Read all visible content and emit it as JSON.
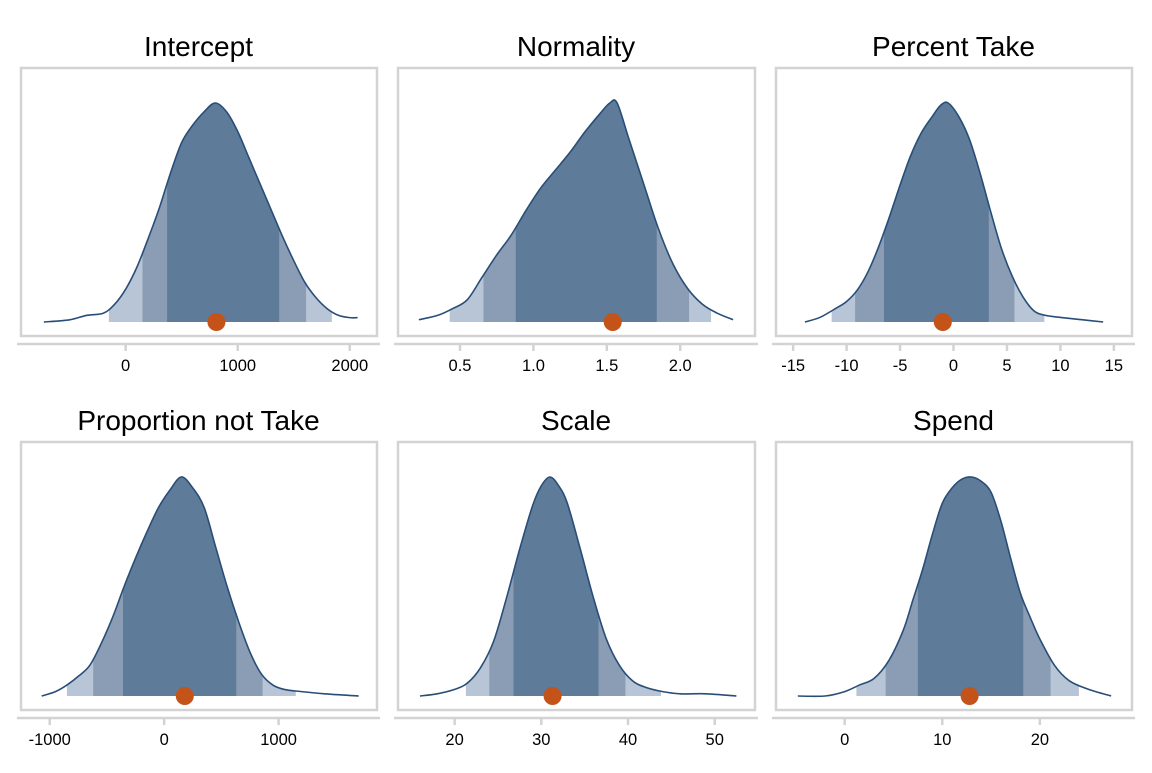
{
  "chart_data": {
    "type": "area",
    "description": "Posterior density plots with 50%/80%/95% interval shading and posterior median point",
    "colors": {
      "inner": "#5e7b99",
      "mid": "#8a9db5",
      "outer": "#b8c5d6",
      "line": "#284e78",
      "point": "#c4531a",
      "frame": "#d3d3d3"
    },
    "panels": [
      {
        "title": "Intercept",
        "xlim": [
          -800,
          2100
        ],
        "ticks": [
          0,
          1000,
          2000
        ],
        "tick_labels": [
          "0",
          "1000",
          "2000"
        ],
        "median": 810,
        "intervals": {
          "inner": [
            370,
            1370
          ],
          "mid": [
            150,
            1610
          ],
          "outer": [
            -150,
            1840
          ]
        },
        "density": {
          "x": [
            -730,
            -500,
            -350,
            -200,
            -100,
            0,
            100,
            200,
            300,
            400,
            500,
            600,
            700,
            800,
            900,
            1000,
            1100,
            1200,
            1300,
            1400,
            1500,
            1600,
            1700,
            1800,
            1900,
            2000,
            2070
          ],
          "y": [
            0.0,
            0.01,
            0.03,
            0.04,
            0.08,
            0.15,
            0.25,
            0.38,
            0.52,
            0.68,
            0.82,
            0.9,
            0.96,
            1.0,
            0.96,
            0.87,
            0.75,
            0.63,
            0.51,
            0.39,
            0.28,
            0.18,
            0.11,
            0.06,
            0.03,
            0.02,
            0.02
          ]
        }
      },
      {
        "title": "Normality",
        "xlim": [
          0.18,
          2.4
        ],
        "ticks": [
          0.5,
          1.0,
          1.5,
          2.0
        ],
        "tick_labels": [
          "0.5",
          "1.0",
          "1.5",
          "2.0"
        ],
        "median": 1.54,
        "intervals": {
          "inner": [
            0.88,
            1.84
          ],
          "mid": [
            0.66,
            2.06
          ],
          "outer": [
            0.43,
            2.21
          ]
        },
        "density": {
          "x": [
            0.22,
            0.35,
            0.45,
            0.55,
            0.65,
            0.75,
            0.85,
            0.95,
            1.05,
            1.15,
            1.25,
            1.35,
            1.45,
            1.52,
            1.57,
            1.65,
            1.75,
            1.85,
            1.95,
            2.05,
            2.15,
            2.25,
            2.36
          ],
          "y": [
            0.01,
            0.03,
            0.06,
            0.1,
            0.2,
            0.3,
            0.39,
            0.5,
            0.6,
            0.68,
            0.76,
            0.85,
            0.93,
            0.98,
            0.98,
            0.82,
            0.62,
            0.42,
            0.26,
            0.15,
            0.08,
            0.04,
            0.01
          ]
        }
      },
      {
        "title": "Percent Take",
        "xlim": [
          -15.2,
          15.2
        ],
        "ticks": [
          -15,
          -10,
          -5,
          0,
          5,
          10,
          15
        ],
        "tick_labels": [
          "-15",
          "-10",
          "-5",
          "0",
          "5",
          "10",
          "15"
        ],
        "median": -1.0,
        "intervals": {
          "inner": [
            -6.5,
            3.3
          ],
          "mid": [
            -9.2,
            5.7
          ],
          "outer": [
            -11.4,
            8.5
          ]
        },
        "density": {
          "x": [
            -13.9,
            -12.5,
            -11.0,
            -10.0,
            -9.0,
            -8.0,
            -7.0,
            -6.0,
            -5.0,
            -4.0,
            -3.0,
            -2.0,
            -1.2,
            -0.5,
            0.5,
            1.5,
            2.5,
            3.5,
            4.5,
            5.5,
            6.5,
            7.5,
            8.5,
            10.0,
            12.0,
            14.0
          ],
          "y": [
            0.0,
            0.02,
            0.06,
            0.09,
            0.14,
            0.22,
            0.33,
            0.46,
            0.6,
            0.73,
            0.83,
            0.9,
            0.95,
            0.96,
            0.9,
            0.8,
            0.65,
            0.48,
            0.32,
            0.2,
            0.11,
            0.05,
            0.03,
            0.02,
            0.01,
            0.0
          ]
        }
      },
      {
        "title": "Proportion not Take",
        "xlim": [
          -1120,
          1720
        ],
        "ticks": [
          -1000,
          0,
          1000
        ],
        "tick_labels": [
          "-1000",
          "0",
          "1000"
        ],
        "median": 180,
        "intervals": {
          "inner": [
            -360,
            630
          ],
          "mid": [
            -620,
            860
          ],
          "outer": [
            -850,
            1150
          ]
        },
        "density": {
          "x": [
            -1070,
            -950,
            -850,
            -750,
            -650,
            -550,
            -450,
            -350,
            -250,
            -150,
            -50,
            50,
            150,
            250,
            350,
            450,
            550,
            650,
            750,
            850,
            950,
            1050,
            1200,
            1400,
            1700
          ],
          "y": [
            0.0,
            0.02,
            0.05,
            0.09,
            0.14,
            0.24,
            0.36,
            0.5,
            0.63,
            0.75,
            0.86,
            0.94,
            1.0,
            0.95,
            0.86,
            0.68,
            0.5,
            0.34,
            0.2,
            0.1,
            0.05,
            0.03,
            0.02,
            0.01,
            0.0
          ]
        }
      },
      {
        "title": "Scale",
        "xlim": [
          15.2,
          52.8
        ],
        "ticks": [
          20,
          30,
          40,
          50
        ],
        "tick_labels": [
          "20",
          "30",
          "40",
          "50"
        ],
        "median": 31.3,
        "intervals": {
          "inner": [
            26.8,
            36.6
          ],
          "mid": [
            24.0,
            39.7
          ],
          "outer": [
            21.3,
            43.8
          ]
        },
        "density": {
          "x": [
            16.0,
            18.0,
            20.0,
            21.5,
            23.0,
            24.5,
            26.0,
            27.5,
            29.0,
            30.0,
            31.0,
            32.0,
            33.0,
            34.5,
            36.0,
            37.5,
            39.0,
            40.5,
            42.0,
            44.0,
            46.0,
            49.0,
            52.5
          ],
          "y": [
            0.0,
            0.01,
            0.03,
            0.06,
            0.13,
            0.25,
            0.45,
            0.67,
            0.87,
            0.96,
            1.0,
            0.96,
            0.88,
            0.67,
            0.45,
            0.26,
            0.14,
            0.07,
            0.04,
            0.02,
            0.01,
            0.01,
            0.0
          ]
        }
      },
      {
        "title": "Spend",
        "xlim": [
          -5.5,
          27.8
        ],
        "ticks": [
          0,
          10,
          20
        ],
        "tick_labels": [
          "0",
          "10",
          "20"
        ],
        "median": 12.8,
        "intervals": {
          "inner": [
            7.5,
            18.3
          ],
          "mid": [
            4.2,
            21.1
          ],
          "outer": [
            1.2,
            24.0
          ]
        },
        "density": {
          "x": [
            -4.8,
            -2.0,
            0.0,
            1.5,
            3.0,
            4.5,
            6.0,
            7.0,
            8.0,
            9.0,
            10.0,
            11.0,
            12.0,
            13.0,
            14.0,
            15.0,
            16.0,
            17.0,
            18.0,
            19.0,
            20.0,
            21.5,
            23.0,
            25.0,
            27.3
          ],
          "y": [
            0.0,
            0.0,
            0.02,
            0.05,
            0.08,
            0.16,
            0.3,
            0.44,
            0.58,
            0.74,
            0.88,
            0.95,
            0.99,
            1.0,
            0.98,
            0.93,
            0.8,
            0.63,
            0.47,
            0.36,
            0.26,
            0.14,
            0.07,
            0.03,
            0.0
          ]
        }
      }
    ]
  }
}
